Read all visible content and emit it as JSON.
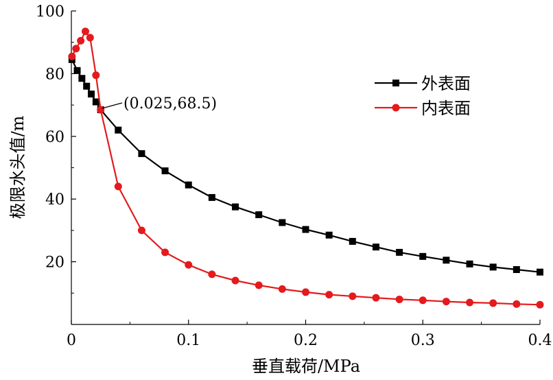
{
  "chart_data": {
    "type": "line",
    "xlabel": "垂直载荷/MPa",
    "ylabel": "极限水头值/m",
    "xlim": [
      0,
      0.4
    ],
    "ylim": [
      0,
      100
    ],
    "xticks": [
      0,
      0.1,
      0.2,
      0.3,
      0.4
    ],
    "xtick_labels": [
      "0",
      "0.1",
      "0.2",
      "0.3",
      "0.4"
    ],
    "yticks": [
      20,
      40,
      60,
      80,
      100
    ],
    "ytick_labels": [
      "20",
      "40",
      "60",
      "80",
      "100"
    ],
    "grid": false,
    "legend_position": "top-right",
    "series": [
      {
        "name": "外表面",
        "color": "#000000",
        "marker": "square",
        "x": [
          0.0005,
          0.005,
          0.009,
          0.013,
          0.017,
          0.021,
          0.025,
          0.04,
          0.06,
          0.08,
          0.1,
          0.12,
          0.14,
          0.16,
          0.18,
          0.2,
          0.22,
          0.24,
          0.26,
          0.28,
          0.3,
          0.32,
          0.34,
          0.36,
          0.38,
          0.4
        ],
        "y": [
          84.5,
          81,
          78.5,
          76,
          73.5,
          71,
          68.5,
          62,
          54.5,
          49,
          44.5,
          40.5,
          37.5,
          35,
          32.5,
          30.3,
          28.5,
          26.5,
          24.7,
          23,
          21.7,
          20.5,
          19.3,
          18.3,
          17.5,
          16.7
        ]
      },
      {
        "name": "内表面",
        "color": "#e41a1c",
        "marker": "circle",
        "x": [
          0.0005,
          0.004,
          0.008,
          0.012,
          0.016,
          0.021,
          0.025,
          0.04,
          0.06,
          0.08,
          0.1,
          0.12,
          0.14,
          0.16,
          0.18,
          0.2,
          0.22,
          0.24,
          0.26,
          0.28,
          0.3,
          0.32,
          0.34,
          0.36,
          0.38,
          0.4
        ],
        "y": [
          85.5,
          88,
          90.5,
          93.5,
          91.5,
          79.5,
          68.5,
          44,
          30,
          23,
          19,
          16,
          14,
          12.5,
          11.3,
          10.3,
          9.5,
          9,
          8.5,
          8,
          7.7,
          7.3,
          7,
          6.8,
          6.5,
          6.3
        ]
      }
    ],
    "annotations": [
      {
        "text": "(0.025,68.5)",
        "x": 0.025,
        "y": 68.5
      }
    ]
  }
}
